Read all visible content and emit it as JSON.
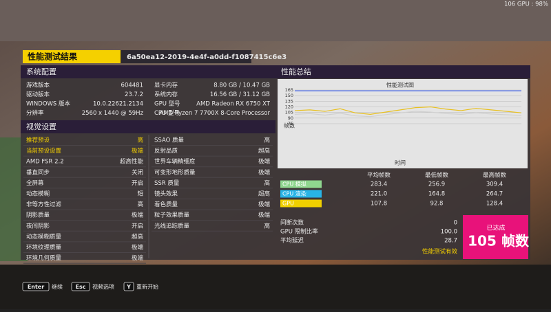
{
  "overlay": "106 GPU : 98%",
  "header": {
    "title": "性能测试结果",
    "id": "6a50ea12-2019-4e4f-a0dd-f1087415c6e3"
  },
  "system": {
    "title": "系统配置",
    "left": [
      [
        "游戏版本",
        "604481"
      ],
      [
        "驱动版本",
        "23.7.2"
      ],
      [
        "WINDOWS 版本",
        "10.0.22621.2134"
      ],
      [
        "分辨率",
        "2560 x 1440 @ 59Hz"
      ]
    ],
    "right": [
      [
        "显卡内存",
        "8.80 GB / 10.47 GB"
      ],
      [
        "系统内存",
        "16.56 GB / 31.12 GB"
      ],
      [
        "GPU 型号",
        "AMD Radeon RX 6750 XT"
      ],
      [
        "CPU 型号",
        "AMD Ryzen 7 7700X 8-Core Processor"
      ]
    ]
  },
  "visual": {
    "title": "视觉设置",
    "left": [
      [
        "推荐预设",
        "高"
      ],
      [
        "当前预设设置",
        "极端"
      ],
      [
        "AMD FSR 2.2",
        "超高性能"
      ],
      [
        "垂直同步",
        "关闭"
      ],
      [
        "全屏幕",
        "开启"
      ],
      [
        "动态模糊",
        "短"
      ],
      [
        "非等方性过滤",
        "高"
      ],
      [
        "阴影质量",
        "极端"
      ],
      [
        "夜间阴影",
        "开启"
      ],
      [
        "动态模糊质量",
        "超高"
      ],
      [
        "环境纹理质量",
        "极端"
      ],
      [
        "环境几何质量",
        "极端"
      ]
    ],
    "right": [
      [
        "SSAO 质量",
        "高"
      ],
      [
        "反射品质",
        "超高"
      ],
      [
        "世界车辆精细度",
        "极端"
      ],
      [
        "可变形地形质量",
        "极端"
      ],
      [
        "SSR 质量",
        "高"
      ],
      [
        "镜头效果",
        "超高"
      ],
      [
        "着色质量",
        "极端"
      ],
      [
        "粒子效果质量",
        "极端"
      ],
      [
        "光线追踪质量",
        "高"
      ]
    ]
  },
  "summary": {
    "title": "性能总结",
    "chart": {
      "title": "性能测试图",
      "ylabel": "帧数",
      "xlabel": "时间",
      "ylim": [
        75,
        165
      ],
      "yticks": [
        165,
        150,
        135,
        120,
        105,
        90,
        75
      ],
      "series": [
        {
          "color": "#4a6cf0",
          "values": [
            163,
            163,
            163,
            163,
            163,
            163,
            163,
            163,
            163,
            163,
            163,
            163,
            163,
            163,
            163,
            163
          ]
        },
        {
          "color": "#e8c020",
          "values": [
            110,
            112,
            108,
            115,
            104,
            100,
            106,
            112,
            118,
            120,
            114,
            110,
            116,
            112,
            108,
            104
          ]
        },
        {
          "color": "#d0d0d0",
          "values": [
            100,
            102,
            98,
            103,
            96,
            94,
            99,
            104,
            108,
            106,
            102,
            100,
            104,
            101,
            99,
            97
          ]
        }
      ]
    },
    "table": {
      "columns": [
        "平均帧数",
        "最低帧数",
        "最高帧数"
      ],
      "rows": [
        {
          "label": "CPU 模拟",
          "color": "#8fd68f",
          "values": [
            "283.4",
            "256.9",
            "309.4"
          ]
        },
        {
          "label": "CPU 渲染",
          "color": "#28b4e6",
          "values": [
            "221.0",
            "164.8",
            "264.7"
          ]
        },
        {
          "label": "GPU",
          "color": "#f0d000",
          "values": [
            "107.8",
            "92.8",
            "128.4"
          ]
        }
      ]
    },
    "stats": [
      [
        "间断次数",
        "0"
      ],
      [
        "GPU 限制比率",
        "100.0"
      ],
      [
        "平均延迟",
        "28.7"
      ]
    ],
    "valid": "性能测试有效",
    "badge": {
      "top": "已达成",
      "value": "105",
      "unit": "帧数"
    }
  },
  "footer": [
    {
      "key": "Enter",
      "label": "继续"
    },
    {
      "key": "Esc",
      "label": "视频选项"
    },
    {
      "key": "Y",
      "label": "重新开始"
    }
  ]
}
